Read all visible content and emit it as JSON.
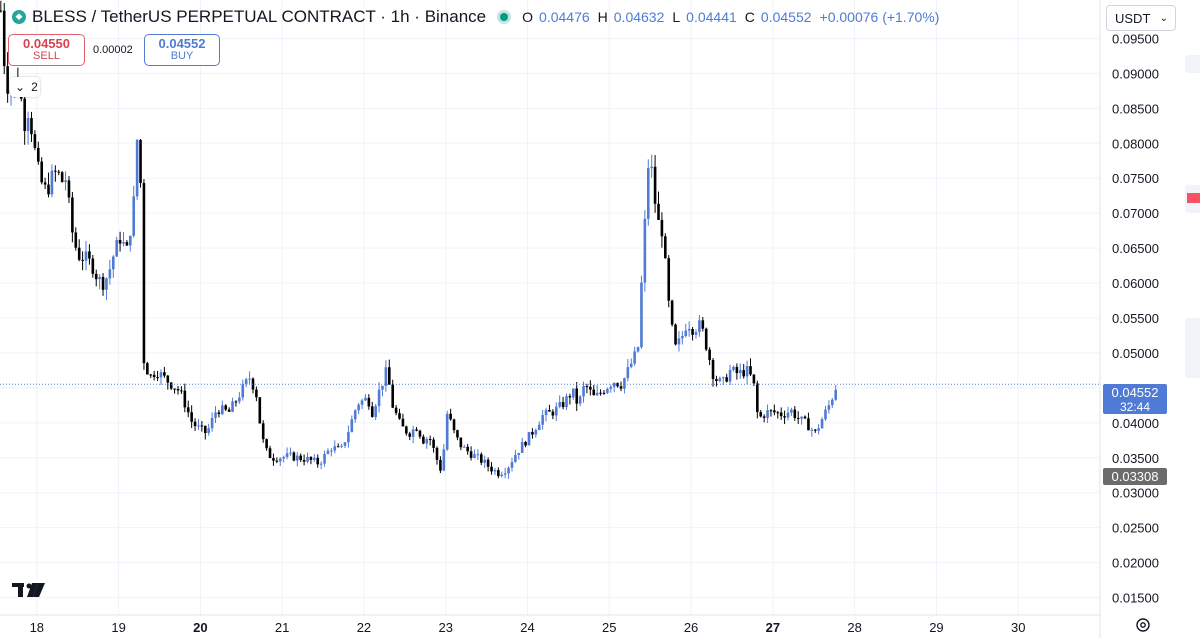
{
  "header": {
    "title": "BLESS / TetherUS PERPETUAL CONTRACT · 1h · Binance",
    "ohlc": [
      {
        "key": "O",
        "value": "0.04476"
      },
      {
        "key": "H",
        "value": "0.04632"
      },
      {
        "key": "L",
        "value": "0.04441"
      },
      {
        "key": "C",
        "value": "0.04552"
      }
    ],
    "change": "+0.00076 (+1.70%)"
  },
  "trade": {
    "sell_price": "0.04550",
    "sell_label": "SELL",
    "spread": "0.00002",
    "buy_price": "0.04552",
    "buy_label": "BUY"
  },
  "indicators_toggle": {
    "count": "2"
  },
  "currency": {
    "selected": "USDT"
  },
  "price_badges": {
    "last_price": "0.04552",
    "countdown": "32:44",
    "low_marker": "0.03308"
  },
  "colors": {
    "up": "#4f7bd6",
    "down": "#000000",
    "grid": "#f0f3fa",
    "axis_text": "#131722",
    "last_price_bg": "#4f7bd6",
    "low_marker_bg": "#6b6b6b",
    "sell": "#d6444f"
  },
  "chart_data": {
    "type": "candlestick",
    "ylim": [
      0.0125,
      0.1005
    ],
    "x_range": [
      17.55,
      31.0
    ],
    "y_ticks": [
      "0.01500",
      "0.02000",
      "0.02500",
      "0.03000",
      "0.03500",
      "0.04000",
      "0.04500",
      "0.05000",
      "0.05500",
      "0.06000",
      "0.06500",
      "0.07000",
      "0.07500",
      "0.08000",
      "0.08500",
      "0.09000",
      "0.09500"
    ],
    "x_ticks": [
      {
        "label": "18",
        "value": 18,
        "bold": false
      },
      {
        "label": "19",
        "value": 19,
        "bold": false
      },
      {
        "label": "20",
        "value": 20,
        "bold": true
      },
      {
        "label": "21",
        "value": 21,
        "bold": false
      },
      {
        "label": "22",
        "value": 22,
        "bold": false
      },
      {
        "label": "23",
        "value": 23,
        "bold": false
      },
      {
        "label": "24",
        "value": 24,
        "bold": false
      },
      {
        "label": "25",
        "value": 25,
        "bold": false
      },
      {
        "label": "26",
        "value": 26,
        "bold": false
      },
      {
        "label": "27",
        "value": 27,
        "bold": true
      },
      {
        "label": "28",
        "value": 28,
        "bold": false
      },
      {
        "label": "29",
        "value": 29,
        "bold": false
      },
      {
        "label": "30",
        "value": 30,
        "bold": false
      }
    ],
    "last_price": 0.04552,
    "close_path": [
      [
        17.56,
        0.099
      ],
      [
        17.6,
        0.092
      ],
      [
        17.66,
        0.087
      ],
      [
        17.72,
        0.089
      ],
      [
        17.8,
        0.087
      ],
      [
        17.85,
        0.083
      ],
      [
        17.9,
        0.085
      ],
      [
        18.0,
        0.077
      ],
      [
        18.05,
        0.0745
      ],
      [
        18.12,
        0.073
      ],
      [
        18.18,
        0.075
      ],
      [
        18.25,
        0.076
      ],
      [
        18.3,
        0.0745
      ],
      [
        18.36,
        0.075
      ],
      [
        18.42,
        0.068
      ],
      [
        18.5,
        0.064
      ],
      [
        18.6,
        0.0635
      ],
      [
        18.68,
        0.0625
      ],
      [
        18.75,
        0.0605
      ],
      [
        18.82,
        0.06
      ],
      [
        18.88,
        0.0615
      ],
      [
        18.95,
        0.0645
      ],
      [
        19.02,
        0.0665
      ],
      [
        19.1,
        0.0645
      ],
      [
        19.18,
        0.0705
      ],
      [
        19.25,
        0.0855
      ],
      [
        19.31,
        0.049
      ],
      [
        19.38,
        0.0465
      ],
      [
        19.46,
        0.0475
      ],
      [
        19.55,
        0.0465
      ],
      [
        19.65,
        0.0455
      ],
      [
        19.75,
        0.0445
      ],
      [
        19.82,
        0.0425
      ],
      [
        19.9,
        0.04
      ],
      [
        20.0,
        0.039
      ],
      [
        20.08,
        0.0385
      ],
      [
        20.2,
        0.042
      ],
      [
        20.35,
        0.0415
      ],
      [
        20.5,
        0.0445
      ],
      [
        20.6,
        0.0465
      ],
      [
        20.68,
        0.0445
      ],
      [
        20.75,
        0.038
      ],
      [
        20.82,
        0.0355
      ],
      [
        20.9,
        0.035
      ],
      [
        21.1,
        0.0352
      ],
      [
        21.3,
        0.0348
      ],
      [
        21.45,
        0.0342
      ],
      [
        21.6,
        0.0365
      ],
      [
        21.72,
        0.036
      ],
      [
        21.82,
        0.0392
      ],
      [
        21.92,
        0.0428
      ],
      [
        22.05,
        0.0435
      ],
      [
        22.1,
        0.0415
      ],
      [
        22.2,
        0.045
      ],
      [
        22.28,
        0.0475
      ],
      [
        22.35,
        0.0425
      ],
      [
        22.45,
        0.0395
      ],
      [
        22.55,
        0.0385
      ],
      [
        22.65,
        0.0395
      ],
      [
        22.72,
        0.0375
      ],
      [
        22.8,
        0.038
      ],
      [
        22.9,
        0.0345
      ],
      [
        22.95,
        0.033
      ],
      [
        23.02,
        0.0415
      ],
      [
        23.12,
        0.038
      ],
      [
        23.2,
        0.0365
      ],
      [
        23.32,
        0.0355
      ],
      [
        23.45,
        0.0345
      ],
      [
        23.55,
        0.0335
      ],
      [
        23.65,
        0.0328
      ],
      [
        23.75,
        0.0335
      ],
      [
        23.85,
        0.0355
      ],
      [
        23.95,
        0.037
      ],
      [
        24.05,
        0.0385
      ],
      [
        24.18,
        0.041
      ],
      [
        24.3,
        0.0415
      ],
      [
        24.42,
        0.0425
      ],
      [
        24.55,
        0.0445
      ],
      [
        24.62,
        0.0425
      ],
      [
        24.7,
        0.0455
      ],
      [
        24.82,
        0.0435
      ],
      [
        24.95,
        0.045
      ],
      [
        25.05,
        0.046
      ],
      [
        25.15,
        0.0455
      ],
      [
        25.25,
        0.048
      ],
      [
        25.35,
        0.0505
      ],
      [
        25.42,
        0.0655
      ],
      [
        25.48,
        0.0775
      ],
      [
        25.53,
        0.0755
      ],
      [
        25.58,
        0.069
      ],
      [
        25.65,
        0.0675
      ],
      [
        25.72,
        0.0575
      ],
      [
        25.8,
        0.0505
      ],
      [
        25.88,
        0.052
      ],
      [
        25.95,
        0.0545
      ],
      [
        26.02,
        0.0535
      ],
      [
        26.12,
        0.054
      ],
      [
        26.2,
        0.0505
      ],
      [
        26.28,
        0.0465
      ],
      [
        26.38,
        0.0455
      ],
      [
        26.48,
        0.0475
      ],
      [
        26.58,
        0.047
      ],
      [
        26.68,
        0.0475
      ],
      [
        26.76,
        0.046
      ],
      [
        26.82,
        0.0405
      ],
      [
        26.92,
        0.0415
      ],
      [
        27.02,
        0.0415
      ],
      [
        27.12,
        0.0412
      ],
      [
        27.22,
        0.0418
      ],
      [
        27.32,
        0.0405
      ],
      [
        27.42,
        0.0398
      ],
      [
        27.52,
        0.0385
      ],
      [
        27.6,
        0.0405
      ],
      [
        27.7,
        0.0428
      ],
      [
        27.78,
        0.0455
      ]
    ]
  }
}
